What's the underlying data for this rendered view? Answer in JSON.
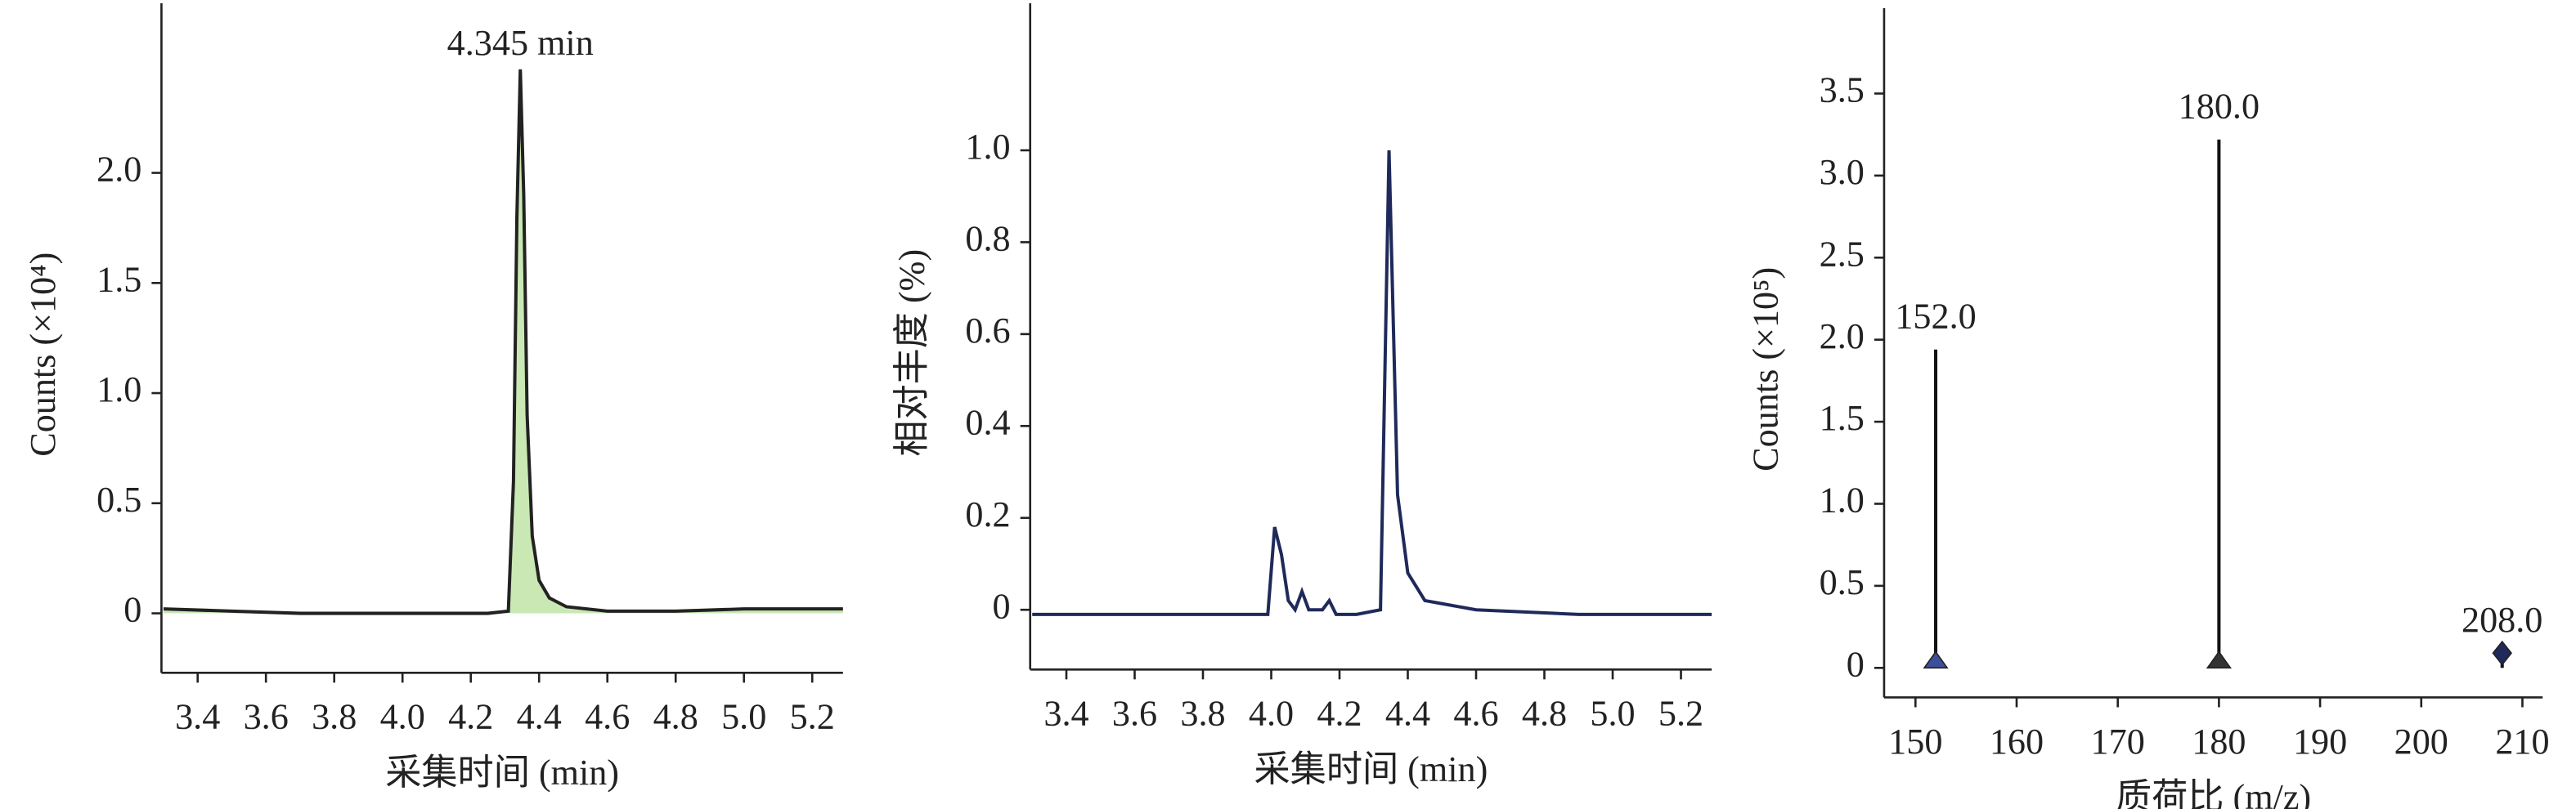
{
  "chart_data": [
    {
      "type": "line",
      "ylabel": "Counts (×10⁴)",
      "xlabel": "采集时间 (min)",
      "annotation": "4.345 min",
      "color": "#222222",
      "fill": "#c9e8b4",
      "x": [
        3.3,
        3.5,
        3.7,
        3.9,
        4.1,
        4.25,
        4.31,
        4.325,
        4.335,
        4.345,
        4.355,
        4.365,
        4.38,
        4.4,
        4.43,
        4.48,
        4.6,
        4.8,
        5.0,
        5.29
      ],
      "values": [
        0.02,
        0.01,
        0,
        0,
        0,
        0,
        0.01,
        0.6,
        1.8,
        2.47,
        1.9,
        0.9,
        0.35,
        0.15,
        0.07,
        0.03,
        0.01,
        0.01,
        0.02,
        0.02
      ],
      "xlim": [
        3.294,
        5.29
      ],
      "ylim": [
        -0.27,
        2.77
      ],
      "xticks": [
        3.4,
        3.6,
        3.8,
        {
          "value": 4,
          "label": "4.0"
        },
        4.2,
        4.4,
        4.6,
        4.8,
        {
          "value": 5,
          "label": "5.0"
        },
        5.2
      ],
      "yticks": [
        0,
        0.5,
        {
          "value": 1,
          "label": "1.0"
        },
        1.5,
        {
          "value": 2,
          "label": "2.0"
        }
      ]
    },
    {
      "type": "line",
      "ylabel": "相对丰度 (%)",
      "xlabel": "采集时间 (min)",
      "color": "#1f2a5a",
      "x": [
        3.3,
        3.6,
        3.9,
        3.99,
        4.01,
        4.03,
        4.05,
        4.07,
        4.09,
        4.11,
        4.15,
        4.17,
        4.19,
        4.25,
        4.32,
        4.335,
        4.345,
        4.355,
        4.37,
        4.4,
        4.45,
        4.6,
        4.9,
        5.29
      ],
      "values": [
        -0.01,
        -0.01,
        -0.01,
        -0.01,
        0.18,
        0.12,
        0.02,
        0.0,
        0.04,
        0.0,
        0.0,
        0.02,
        -0.01,
        -0.01,
        0.0,
        0.6,
        1.0,
        0.7,
        0.25,
        0.08,
        0.02,
        0.0,
        -0.01,
        -0.01
      ],
      "xlim": [
        3.294,
        5.29
      ],
      "ylim": [
        -0.13,
        1.32
      ],
      "xticks": [
        3.4,
        3.6,
        3.8,
        {
          "value": 4,
          "label": "4.0"
        },
        4.2,
        4.4,
        4.6,
        4.8,
        {
          "value": 5,
          "label": "5.0"
        },
        5.2
      ],
      "yticks": [
        0,
        0.2,
        0.4,
        0.6,
        0.8,
        {
          "value": 1,
          "label": "1.0"
        }
      ]
    },
    {
      "type": "stem",
      "ylabel": "Counts (×10⁵)",
      "xlabel": "质荷比 (m/z)",
      "x": [
        152,
        180,
        208
      ],
      "x_labels": [
        "152.0",
        "180.0",
        "208.0"
      ],
      "values": [
        1.94,
        3.22,
        0.09
      ],
      "markers": [
        "triangle",
        "triangle",
        "diamond"
      ],
      "marker_colors": [
        "#3b4f9a",
        "#333333",
        "#1f2a5a"
      ],
      "xlim": [
        146.9,
        212
      ],
      "ylim": [
        -0.18,
        4.02
      ],
      "xticks": [
        150,
        160,
        170,
        180,
        190,
        200,
        210
      ],
      "yticks": [
        0,
        0.5,
        {
          "value": 1,
          "label": "1.0"
        },
        1.5,
        {
          "value": 2,
          "label": "2.0"
        },
        2.5,
        {
          "value": 3,
          "label": "3.0"
        },
        3.5
      ]
    }
  ]
}
